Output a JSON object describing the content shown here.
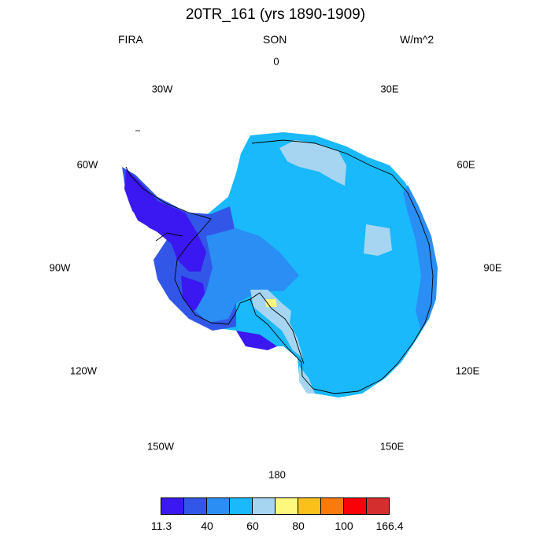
{
  "title": "20TR_161 (yrs 1890-1909)",
  "left_label": "FIRA",
  "center_label": "SON",
  "right_label": "W/m^2",
  "longitudes": {
    "0": "0",
    "30E": "30E",
    "60E": "60E",
    "90E": "90E",
    "120E": "120E",
    "150E": "150E",
    "180": "180",
    "150W": "150W",
    "120W": "120W",
    "90W": "90W",
    "60W": "60W",
    "30W": "30W"
  },
  "colorbar": {
    "colors": [
      "#3b18f2",
      "#3257e8",
      "#2a8ef5",
      "#19b9fb",
      "#a6d5f1",
      "#fef87f",
      "#fbc01a",
      "#fa7a0a",
      "#fa0008",
      "#d42e2e"
    ],
    "labels": [
      "11.3",
      "40",
      "60",
      "80",
      "100",
      "166.4"
    ]
  }
}
